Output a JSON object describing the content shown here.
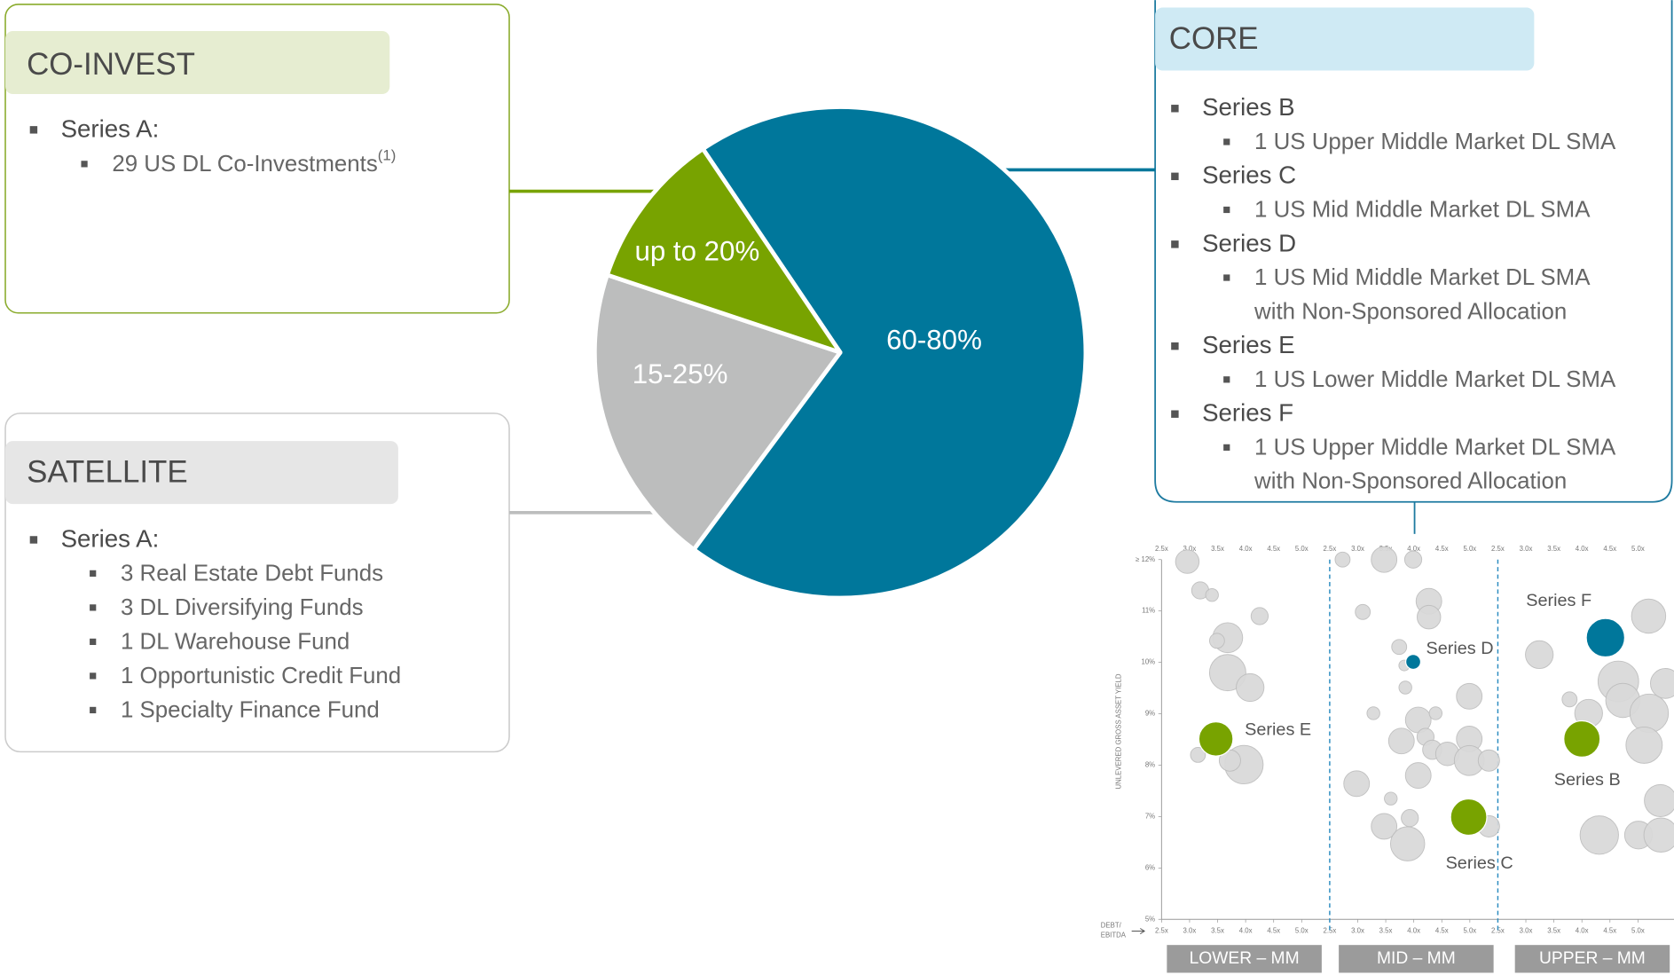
{
  "co_invest": {
    "title": "CO-INVEST",
    "items": [
      {
        "label": "Series A:",
        "sub": [
          {
            "text": "29 US DL Co-Investments",
            "note": "(1)"
          }
        ]
      }
    ]
  },
  "satellite": {
    "title": "SATELLITE",
    "items": [
      {
        "label": "Series A:",
        "sub": [
          [
            "3 Real Estate Debt Funds"
          ],
          [
            "3 DL Diversifying Funds"
          ],
          [
            "1 DL Warehouse Fund"
          ],
          [
            "1 Opportunistic Credit Fund"
          ],
          [
            "1 Specialty Finance Fund"
          ]
        ]
      }
    ]
  },
  "core": {
    "title": "CORE",
    "items": [
      {
        "label": "Series B",
        "sub": [
          [
            "1 US Upper Middle Market DL SMA"
          ]
        ]
      },
      {
        "label": "Series C",
        "sub": [
          [
            "1 US Mid Middle Market DL SMA"
          ]
        ]
      },
      {
        "label": "Series D",
        "sub": [
          [
            "1 US Mid Middle Market DL SMA",
            "with Non-Sponsored Allocation"
          ]
        ]
      },
      {
        "label": "Series E",
        "sub": [
          [
            "1 US Lower Middle Market DL SMA"
          ]
        ]
      },
      {
        "label": "Series F",
        "sub": [
          [
            "1 US Upper Middle Market DL SMA",
            "with Non-Sponsored Allocation"
          ]
        ]
      }
    ]
  },
  "pie": {
    "slices": [
      {
        "label": "60-80%",
        "color": "#00779b"
      },
      {
        "label": "15-25%",
        "color": "#bcbdbd"
      },
      {
        "label": "up to 20%",
        "color": "#78a300"
      }
    ]
  },
  "chart_data": {
    "type": "bubble",
    "y_label": "UNLEVERED GROSS ASSET YIELD",
    "x_label": [
      "DEBT/",
      "EBITDA"
    ],
    "ylim": [
      5,
      12
    ],
    "yticks": [
      {
        "value": 5,
        "label": "5%"
      },
      {
        "value": 6,
        "label": "6%"
      },
      {
        "value": 7,
        "label": "7%"
      },
      {
        "value": 8,
        "label": "8%"
      },
      {
        "value": 9,
        "label": "9%"
      },
      {
        "value": 10,
        "label": "10%"
      },
      {
        "value": 11,
        "label": "11%"
      },
      {
        "value": 12,
        "label": "≥ 12%"
      }
    ],
    "segments": [
      {
        "name": "LOWER – MM",
        "xlim": [
          2.5,
          5.5
        ],
        "xticks": [
          {
            "value": 2.5,
            "label": "2.5x"
          },
          {
            "value": 3,
            "label": "3.0x"
          },
          {
            "value": 3.5,
            "label": "3.5x"
          },
          {
            "value": 4,
            "label": "4.0x"
          },
          {
            "value": 4.5,
            "label": "4.5x"
          },
          {
            "value": 5,
            "label": "5.0x"
          }
        ]
      },
      {
        "name": "MID – MM",
        "xlim": [
          2.5,
          5.5
        ],
        "xticks": [
          {
            "value": 2.5,
            "label": "2.5x"
          },
          {
            "value": 3,
            "label": "3.0x"
          },
          {
            "value": 3.5,
            "label": "3.5x"
          },
          {
            "value": 4,
            "label": "4.0x"
          },
          {
            "value": 4.5,
            "label": "4.5x"
          },
          {
            "value": 5,
            "label": "5.0x"
          }
        ]
      },
      {
        "name": "UPPER – MM",
        "xlim": [
          2.5,
          5.5
        ],
        "xticks": [
          {
            "value": 2.5,
            "label": "2.5x"
          },
          {
            "value": 3,
            "label": "3.0x"
          },
          {
            "value": 3.5,
            "label": "3.5x"
          },
          {
            "value": 4,
            "label": "4.0x"
          },
          {
            "value": 4.5,
            "label": "4.5x"
          },
          {
            "value": 5,
            "label": "5.0x"
          }
        ]
      }
    ],
    "bubbles": {
      "color": "#d9d9d9",
      "segment": [
        0,
        0,
        0,
        0,
        0,
        0,
        0,
        0,
        0,
        0,
        0,
        1,
        1,
        1,
        1,
        1,
        1,
        1,
        1,
        1,
        1,
        1,
        1,
        1,
        1,
        1,
        1,
        1,
        1,
        1,
        1,
        1,
        1,
        1,
        1,
        1,
        1,
        1,
        2,
        2,
        2,
        2,
        2,
        2,
        2,
        2,
        2,
        2,
        2,
        2,
        2
      ],
      "x": [
        2.96,
        3.19,
        3.4,
        3.68,
        3.49,
        3.68,
        4.08,
        4.25,
        3.15,
        3.97,
        3.72,
        2.73,
        3.47,
        3.99,
        3.09,
        4.27,
        4.27,
        3.74,
        3.83,
        3.85,
        4.99,
        3.28,
        4.08,
        4.39,
        3.78,
        4.21,
        4.33,
        4.99,
        4.6,
        4.99,
        5.34,
        4.08,
        2.98,
        3.59,
        3.47,
        3.89,
        3.93,
        5.34,
        3.24,
        5.19,
        3.78,
        4.12,
        4.65,
        4.73,
        5.2,
        5.49,
        5.11,
        5.4,
        4.31,
        5.01,
        5.41
      ],
      "y": [
        11.96,
        11.4,
        11.31,
        10.48,
        10.42,
        9.8,
        9.51,
        10.9,
        8.2,
        8.01,
        8.09,
        12,
        12,
        12,
        10.98,
        11.19,
        10.88,
        10.3,
        9.94,
        9.51,
        9.34,
        9.01,
        8.88,
        9.01,
        8.47,
        8.55,
        8.3,
        8.51,
        8.22,
        8.09,
        8.09,
        7.8,
        7.64,
        7.35,
        6.81,
        6.47,
        6.97,
        6.81,
        10.15,
        10.9,
        9.28,
        9.01,
        9.63,
        9.26,
        9.01,
        9.59,
        8.39,
        7.31,
        6.64,
        6.64,
        6.64
      ],
      "size": [
        11,
        8,
        6,
        14,
        7,
        17,
        13,
        8,
        7,
        18,
        10,
        7,
        12,
        8,
        7,
        12,
        11,
        7,
        5,
        6,
        12,
        6,
        12,
        6,
        12,
        8,
        9,
        12,
        11,
        14,
        10,
        12,
        12,
        6,
        12,
        16,
        8,
        10,
        13,
        16,
        7,
        13,
        19,
        16,
        18,
        14,
        17,
        15,
        18,
        13,
        16
      ]
    },
    "series": [
      {
        "name": "Series E",
        "color": "#78a300",
        "segment": 0,
        "x": 3.47,
        "y": 8.51,
        "size": 16
      },
      {
        "name": "Series D",
        "color": "#00779b",
        "segment": 1,
        "x": 3.99,
        "y": 10.01,
        "size": 7
      },
      {
        "name": "Series C",
        "color": "#78a300",
        "segment": 1,
        "x": 4.98,
        "y": 6.99,
        "size": 17
      },
      {
        "name": "Series F",
        "color": "#00779b",
        "segment": 2,
        "x": 4.42,
        "y": 10.48,
        "size": 18
      },
      {
        "name": "Series B",
        "color": "#78a300",
        "segment": 2,
        "x": 4.0,
        "y": 8.51,
        "size": 17
      }
    ]
  }
}
